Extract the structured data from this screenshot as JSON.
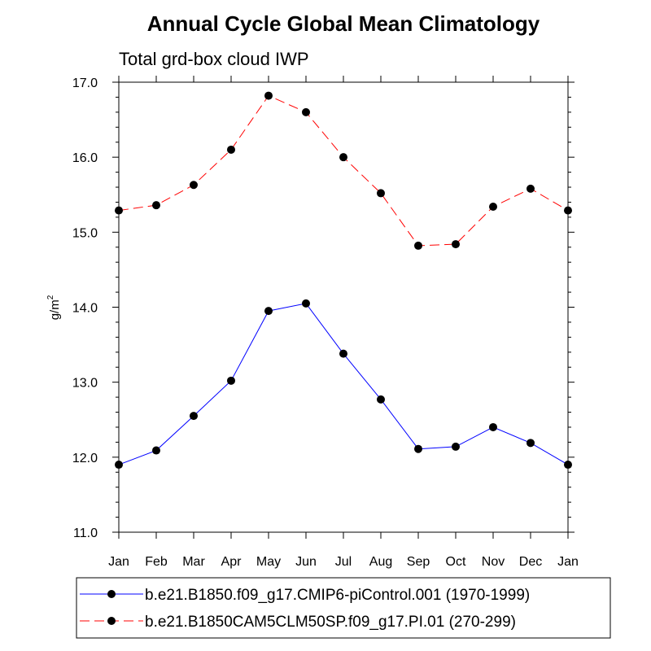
{
  "chart_data": {
    "type": "line",
    "title": "Annual Cycle Global Mean Climatology",
    "subtitle": "Total grd-box cloud IWP",
    "ylabel": "g/m",
    "ylabel_sup": "2",
    "ylim": [
      11.0,
      17.0
    ],
    "yticks": [
      "11.0",
      "12.0",
      "13.0",
      "14.0",
      "15.0",
      "16.0",
      "17.0"
    ],
    "categories": [
      "Jan",
      "Feb",
      "Mar",
      "Apr",
      "May",
      "Jun",
      "Jul",
      "Aug",
      "Sep",
      "Oct",
      "Nov",
      "Dec",
      "Jan"
    ],
    "series": [
      {
        "name": "b.e21.B1850.f09_g17.CMIP6-piControl.001 (1970-1999)",
        "color": "#0000ff",
        "dash": "solid",
        "values": [
          11.9,
          12.09,
          12.55,
          13.02,
          13.95,
          14.05,
          13.38,
          12.77,
          12.11,
          12.14,
          12.4,
          12.19,
          11.9
        ]
      },
      {
        "name": "b.e21.B1850CAM5CLM50SP.f09_g17.PI.01 (270-299)",
        "color": "#ff0000",
        "dash": "dashed",
        "values": [
          15.29,
          15.36,
          15.63,
          16.1,
          16.82,
          16.6,
          16.0,
          15.52,
          14.82,
          14.84,
          15.34,
          15.58,
          15.29
        ]
      }
    ]
  }
}
